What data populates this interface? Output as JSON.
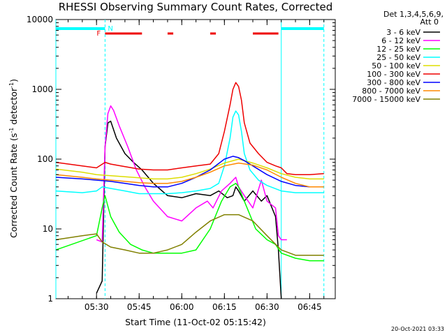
{
  "chart_data": {
    "type": "line",
    "title": "RHESSI Observing Summary Count Rates, Corrected",
    "xlabel": "Start Time (11-Oct-02 05:15:42)",
    "ylabel_main": "Corrected Count Rate (s",
    "ylabel_sup1": "-1",
    "ylabel_mid": " detector",
    "ylabel_sup2": "-1",
    "ylabel_end": ")",
    "x_scale": "time",
    "x_range": [
      "05:15:42",
      "06:54:00"
    ],
    "x_ticks": [
      "05:30",
      "05:45",
      "06:00",
      "06:15",
      "06:30",
      "06:45"
    ],
    "y_scale": "log",
    "y_range": [
      1,
      10000
    ],
    "y_ticks": [
      "1",
      "10",
      "100",
      "1000",
      "10000"
    ],
    "legend_header": [
      "Det 1,3,4,5,6,9,",
      "Att 0"
    ],
    "legend_position": "right",
    "timestamp": "20-Oct-2021 03:33",
    "flags": {
      "f_label": "F",
      "n_label": "N",
      "flare_flag_color": "#ee0000",
      "night_flag_color": "#00ffff",
      "flare_intervals": [
        [
          "05:33",
          "05:46"
        ],
        [
          "05:55",
          "05:57"
        ],
        [
          "06:10",
          "06:12"
        ],
        [
          "06:25",
          "06:34"
        ]
      ],
      "night_intervals": [
        [
          "05:15:42",
          "05:33"
        ],
        [
          "06:35",
          "06:50"
        ]
      ],
      "night_edges": [
        "05:15:42",
        "05:33",
        "06:35",
        "06:50"
      ]
    },
    "series": [
      {
        "name": "3 - 6 keV",
        "color": "#000000",
        "x": [
          "05:30",
          "05:32",
          "05:33",
          "05:34",
          "05:35",
          "05:37",
          "05:40",
          "05:43",
          "05:46",
          "05:50",
          "05:55",
          "06:00",
          "06:05",
          "06:10",
          "06:13",
          "06:16",
          "06:18",
          "06:19",
          "06:20",
          "06:22",
          "06:25",
          "06:28",
          "06:30",
          "06:33",
          "06:34",
          "06:35"
        ],
        "y": [
          1.2,
          1.8,
          150,
          330,
          350,
          200,
          120,
          90,
          70,
          45,
          30,
          28,
          32,
          30,
          35,
          28,
          30,
          40,
          35,
          25,
          35,
          25,
          30,
          15,
          5,
          1
        ]
      },
      {
        "name": "6 - 12 keV",
        "color": "#ff00ff",
        "x": [
          "05:30",
          "05:32",
          "05:33",
          "05:34",
          "05:35",
          "05:36",
          "05:38",
          "05:41",
          "05:44",
          "05:47",
          "05:50",
          "05:55",
          "06:00",
          "06:05",
          "06:09",
          "06:11",
          "06:14",
          "06:17",
          "06:19",
          "06:20",
          "06:22",
          "06:25",
          "06:28",
          "06:30",
          "06:33",
          "06:34",
          "06:35",
          "06:37"
        ],
        "y": [
          7,
          6.5,
          150,
          450,
          580,
          500,
          300,
          150,
          70,
          40,
          25,
          15,
          13,
          20,
          25,
          20,
          35,
          45,
          55,
          40,
          30,
          20,
          50,
          25,
          20,
          8,
          7,
          7
        ]
      },
      {
        "name": "12 - 25 keV",
        "color": "#00ff00",
        "x": [
          "05:15:42",
          "05:28",
          "05:30",
          "05:32",
          "05:33",
          "05:35",
          "05:38",
          "05:42",
          "05:46",
          "05:50",
          "05:55",
          "06:00",
          "06:05",
          "06:10",
          "06:14",
          "06:17",
          "06:19",
          "06:20",
          "06:22",
          "06:26",
          "06:30",
          "06:33",
          "06:35",
          "06:40",
          "06:45",
          "06:50"
        ],
        "y": [
          5,
          7.5,
          8,
          20,
          30,
          15,
          9,
          6,
          5,
          4.5,
          4.5,
          4.5,
          5,
          10,
          25,
          40,
          45,
          40,
          25,
          10,
          7,
          6,
          4.5,
          3.8,
          3.5,
          3.5
        ]
      },
      {
        "name": "25 - 50 keV",
        "color": "#00ffff",
        "x": [
          "05:15:42",
          "05:25",
          "05:30",
          "05:32",
          "05:35",
          "05:40",
          "05:45",
          "05:50",
          "05:55",
          "06:00",
          "06:05",
          "06:10",
          "06:13",
          "06:15",
          "06:17",
          "06:18",
          "06:19",
          "06:20",
          "06:21",
          "06:22",
          "06:24",
          "06:27",
          "06:30",
          "06:35",
          "06:40",
          "06:45",
          "06:50"
        ],
        "y": [
          35,
          33,
          35,
          40,
          38,
          35,
          32,
          32,
          32,
          33,
          35,
          38,
          45,
          80,
          200,
          400,
          490,
          430,
          250,
          120,
          70,
          50,
          42,
          35,
          33,
          33,
          33
        ]
      },
      {
        "name": "50 - 100 keV",
        "color": "#dddd00",
        "x": [
          "05:15:42",
          "05:25",
          "05:30",
          "05:35",
          "05:40",
          "05:45",
          "05:50",
          "05:55",
          "06:00",
          "06:05",
          "06:10",
          "06:15",
          "06:20",
          "06:25",
          "06:30",
          "06:35",
          "06:40",
          "06:45",
          "06:50"
        ],
        "y": [
          72,
          65,
          60,
          58,
          56,
          54,
          52,
          52,
          55,
          62,
          72,
          88,
          100,
          88,
          75,
          62,
          55,
          52,
          52
        ]
      },
      {
        "name": "100 - 300 keV",
        "color": "#ee0000",
        "x": [
          "05:15:42",
          "05:25",
          "05:30",
          "05:33",
          "05:35",
          "05:40",
          "05:45",
          "05:50",
          "05:55",
          "06:00",
          "06:05",
          "06:10",
          "06:13",
          "06:15",
          "06:17",
          "06:18",
          "06:19",
          "06:20",
          "06:21",
          "06:22",
          "06:24",
          "06:27",
          "06:30",
          "06:33",
          "06:35",
          "06:37",
          "06:40",
          "06:45",
          "06:50"
        ],
        "y": [
          90,
          80,
          75,
          90,
          85,
          78,
          72,
          70,
          70,
          75,
          80,
          85,
          120,
          250,
          600,
          1000,
          1250,
          1100,
          700,
          330,
          170,
          120,
          90,
          80,
          75,
          62,
          60,
          60,
          62
        ]
      },
      {
        "name": "300 - 800 keV",
        "color": "#0000ff",
        "x": [
          "05:15:42",
          "05:25",
          "05:30",
          "05:35",
          "05:40",
          "05:45",
          "05:50",
          "05:55",
          "06:00",
          "06:05",
          "06:10",
          "06:15",
          "06:18",
          "06:20",
          "06:22",
          "06:25",
          "06:30",
          "06:35",
          "06:40",
          "06:45",
          "06:50"
        ],
        "y": [
          55,
          52,
          50,
          48,
          45,
          42,
          40,
          40,
          45,
          55,
          70,
          100,
          110,
          105,
          95,
          80,
          60,
          48,
          42,
          40,
          40
        ]
      },
      {
        "name": "800 - 7000 keV",
        "color": "#ff8800",
        "x": [
          "05:15:42",
          "05:25",
          "05:30",
          "05:35",
          "05:40",
          "05:45",
          "05:50",
          "05:55",
          "06:00",
          "06:05",
          "06:10",
          "06:15",
          "06:20",
          "06:25",
          "06:30",
          "06:35",
          "06:40",
          "06:45",
          "06:50"
        ],
        "y": [
          60,
          55,
          52,
          50,
          48,
          46,
          45,
          45,
          48,
          55,
          65,
          80,
          88,
          82,
          70,
          55,
          45,
          40,
          40
        ]
      },
      {
        "name": "7000 - 15000 keV",
        "color": "#808000",
        "x": [
          "05:15:42",
          "05:25",
          "05:30",
          "05:32",
          "05:35",
          "05:40",
          "05:45",
          "05:50",
          "05:55",
          "06:00",
          "06:05",
          "06:10",
          "06:15",
          "06:20",
          "06:25",
          "06:30",
          "06:35",
          "06:40",
          "06:45",
          "06:50"
        ],
        "y": [
          7,
          8,
          8.5,
          6.5,
          5.5,
          5,
          4.5,
          4.5,
          5,
          6,
          9,
          13,
          16,
          16,
          13,
          8,
          5,
          4.2,
          4.2,
          4.2
        ]
      }
    ]
  }
}
